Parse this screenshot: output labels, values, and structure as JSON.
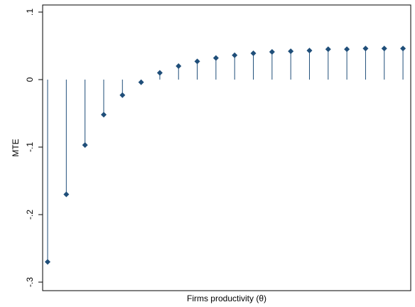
{
  "chart_data": {
    "type": "scatter",
    "style": "stem (dropline to zero)",
    "title": "",
    "xlabel": "Firms productivity (θ)",
    "ylabel": "MTE",
    "ylim": [
      -0.3,
      0.1
    ],
    "yticks": [
      {
        "value": 0.1,
        "label": ".1"
      },
      {
        "value": 0,
        "label": "0"
      },
      {
        "value": -0.1,
        "label": "-.1"
      },
      {
        "value": -0.2,
        "label": "-.2"
      },
      {
        "value": -0.3,
        "label": "-.3"
      }
    ],
    "x": [
      1,
      2,
      3,
      4,
      5,
      6,
      7,
      8,
      9,
      10,
      11,
      12,
      13,
      14,
      15,
      16,
      17,
      18,
      19,
      20
    ],
    "series": [
      {
        "values": [
          -0.27,
          -0.17,
          -0.097,
          -0.052,
          -0.023,
          -0.004,
          0.01,
          0.02,
          0.027,
          0.032,
          0.036,
          0.039,
          0.041,
          0.042,
          0.043,
          0.045,
          0.045,
          0.046,
          0.046,
          0.046
        ]
      }
    ],
    "grid": false,
    "legend": "none",
    "colors": {
      "marker": "#1f4e79",
      "stem": "#1f4e79",
      "frame": "#000000",
      "background": "#ffffff"
    }
  }
}
